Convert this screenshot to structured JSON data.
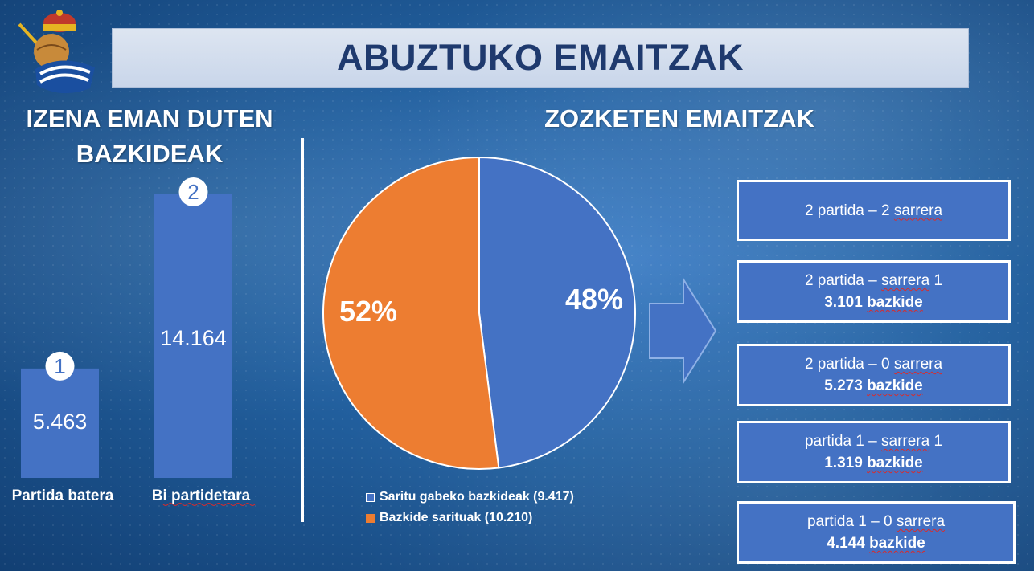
{
  "title": "ABUZTUKO EMAITZAK",
  "left_heading": {
    "line1": "IZENA EMAN DUTEN",
    "line2": "BAZKIDEAK"
  },
  "right_heading": "ZOZKETEN EMAITZAK",
  "colors": {
    "bar": "#4472c4",
    "pie_blue": "#4472c4",
    "pie_orange": "#ed7d31",
    "title_text": "#1f3a6e"
  },
  "chart_data": [
    {
      "type": "bar",
      "categories": [
        "Partida batera",
        "Bi partidetara"
      ],
      "values": [
        5463,
        14164
      ],
      "data_labels": [
        "5.463",
        "14.164"
      ],
      "badges": [
        "1",
        "2"
      ],
      "ylim": [
        0,
        14164
      ]
    },
    {
      "type": "pie",
      "labels": [
        "Saritu gabeko bazkideak (9.417)",
        "Bazkide sarituak (10.210)"
      ],
      "values": [
        48,
        52
      ],
      "data_labels": [
        "48%",
        "52%"
      ],
      "colors": [
        "#4472c4",
        "#ed7d31"
      ],
      "legend": "bottom"
    }
  ],
  "results": [
    {
      "line1_pre": "2 partida – 2 ",
      "line1_word": "sarrera",
      "line1_post": "",
      "count_num": "",
      "count_word": ""
    },
    {
      "line1_pre": "2 partida – ",
      "line1_word": "sarrera",
      "line1_post": " 1",
      "count_num": "3.101 ",
      "count_word": "bazkide"
    },
    {
      "line1_pre": "2 partida – 0 ",
      "line1_word": "sarrera",
      "line1_post": "",
      "count_num": "5.273 ",
      "count_word": "bazkide"
    },
    {
      "line1_pre": "partida 1 – ",
      "line1_word": "sarrera",
      "line1_post": " 1",
      "count_num": "1.319 ",
      "count_word": "bazkide"
    },
    {
      "line1_pre": "partida 1 – 0 ",
      "line1_word": "sarrera",
      "line1_post": "",
      "count_num": "4.144 ",
      "count_word": "bazkide"
    }
  ]
}
